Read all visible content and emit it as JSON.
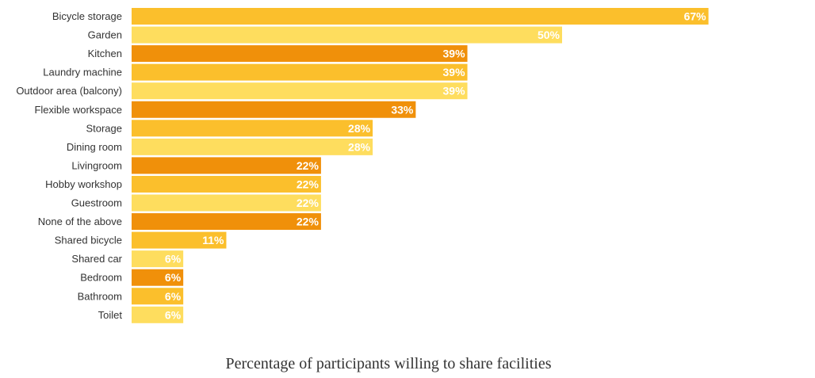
{
  "chart_data": {
    "type": "bar",
    "orientation": "horizontal",
    "title": "Percentage of participants willing to share facilities",
    "categories": [
      "Bicycle storage",
      "Garden",
      "Kitchen",
      "Laundry machine",
      "Outdoor area (balcony)",
      "Flexible workspace",
      "Storage",
      "Dining room",
      "Livingroom",
      "Hobby workshop",
      "Guestroom",
      "None of the above",
      "Shared bicycle",
      "Shared car",
      "Bedroom",
      "Bathroom",
      "Toilet"
    ],
    "values": [
      67,
      50,
      39,
      39,
      39,
      33,
      28,
      28,
      22,
      22,
      22,
      22,
      11,
      6,
      6,
      6,
      6
    ],
    "value_labels": [
      "67%",
      "50%",
      "39%",
      "39%",
      "39%",
      "33%",
      "28%",
      "28%",
      "22%",
      "22%",
      "22%",
      "22%",
      "11%",
      "6%",
      "6%",
      "6%",
      "6%"
    ],
    "unit": "%",
    "xlim": [
      0,
      100
    ],
    "grid": false,
    "legend": "none",
    "colors": [
      "#fbbf2c",
      "#fedd5e",
      "#f0900a",
      "#fbbf2c",
      "#fedd5e",
      "#f0900a",
      "#fbbf2c",
      "#fedd5e",
      "#f0900a",
      "#fbbf2c",
      "#fedd5e",
      "#f0900a",
      "#fbbf2c",
      "#fedd5e",
      "#f0900a",
      "#fbbf2c",
      "#fedd5e"
    ]
  }
}
